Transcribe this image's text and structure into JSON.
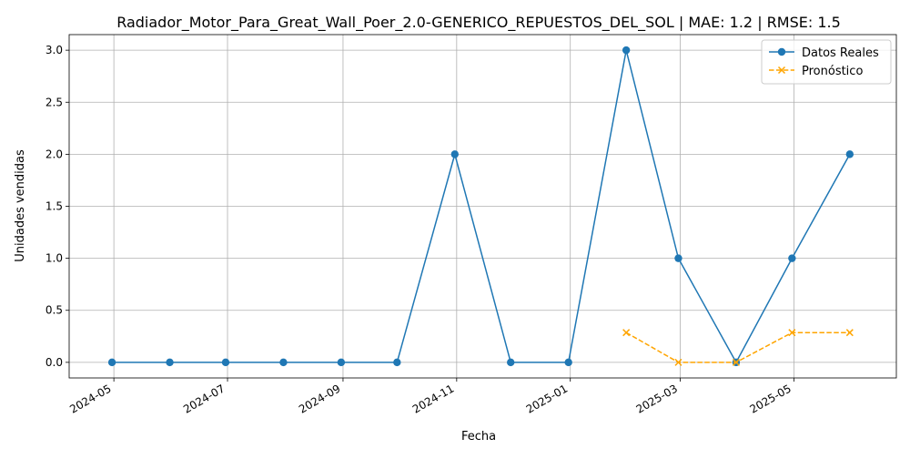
{
  "chart_data": {
    "type": "line",
    "title": "Radiador_Motor_Para_Great_Wall_Poer_2.0-GENERICO_REPUESTOS_DEL_SOL | MAE: 1.2 | RMSE: 1.5",
    "xlabel": "Fecha",
    "ylabel": "Unidades vendidas",
    "xlim": [
      "2024-04-07",
      "2025-06-25"
    ],
    "ylim": [
      -0.15,
      3.15
    ],
    "x_ticks": [
      "2024-05",
      "2024-07",
      "2024-09",
      "2024-11",
      "2025-01",
      "2025-03",
      "2025-05"
    ],
    "x_tick_dates": [
      "2024-05-01",
      "2024-07-01",
      "2024-09-01",
      "2024-11-01",
      "2025-01-01",
      "2025-03-01",
      "2025-05-01"
    ],
    "y_ticks": [
      0.0,
      0.5,
      1.0,
      1.5,
      2.0,
      2.5,
      3.0
    ],
    "y_tick_labels": [
      "0.0",
      "0.5",
      "1.0",
      "1.5",
      "2.0",
      "2.5",
      "3.0"
    ],
    "grid": true,
    "legend_position": "top-right",
    "series": [
      {
        "name": "Datos Reales",
        "color": "#1f77b4",
        "line_style": "solid",
        "marker": "circle",
        "x": [
          "2024-04-30",
          "2024-05-31",
          "2024-06-30",
          "2024-07-31",
          "2024-08-31",
          "2024-09-30",
          "2024-10-31",
          "2024-11-30",
          "2024-12-31",
          "2025-01-31",
          "2025-02-28",
          "2025-03-31",
          "2025-04-30",
          "2025-05-31"
        ],
        "values": [
          0,
          0,
          0,
          0,
          0,
          0,
          2,
          0,
          0,
          3,
          1,
          0,
          1,
          2
        ]
      },
      {
        "name": "Pronóstico",
        "color": "#ffa500",
        "line_style": "dashed",
        "marker": "x",
        "x": [
          "2025-01-31",
          "2025-02-28",
          "2025-03-31",
          "2025-04-30",
          "2025-05-31"
        ],
        "values": [
          0.286,
          0.0,
          0.0,
          0.286,
          0.286
        ]
      }
    ]
  }
}
